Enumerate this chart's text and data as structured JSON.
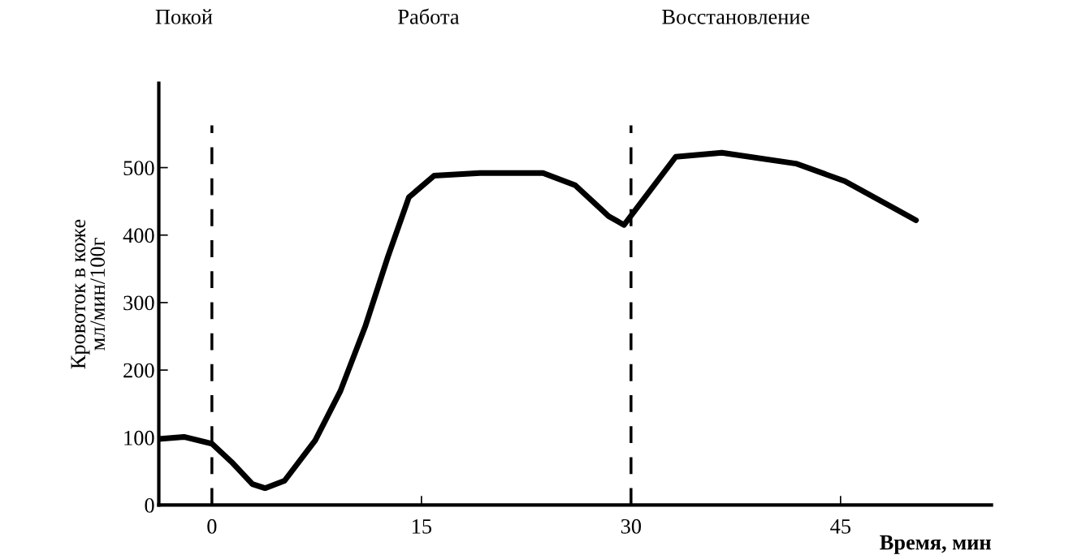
{
  "chart_data": {
    "type": "line",
    "xlabel": "Время, мин",
    "ylabel": "Кровоток в коже\nмл/мин/100г",
    "annotations": [
      "Покой",
      "Работа",
      "Восстановление"
    ],
    "x": [
      -3.8,
      -2.0,
      0,
      1.4,
      2.9,
      3.8,
      5.2,
      7.4,
      9.2,
      11.0,
      12.6,
      14.1,
      15.9,
      19.2,
      23.7,
      26.0,
      28.4,
      29.5,
      33.2,
      36.5,
      41.8,
      45.3,
      50.4
    ],
    "series": [
      {
        "color": "#000000",
        "values": [
          98,
          101,
          91,
          64,
          31,
          25,
          36,
          96,
          169,
          266,
          368,
          456,
          488,
          492,
          492,
          474,
          428,
          415,
          516,
          522,
          506,
          480,
          422
        ]
      }
    ],
    "xlim": [
      -3.8,
      55.8
    ],
    "ylim": [
      0,
      625
    ],
    "xticks": [
      0,
      15,
      30,
      45
    ],
    "yticks": [
      0,
      100,
      200,
      300,
      400,
      500
    ],
    "ref_lines": [
      {
        "axis": "x",
        "value": 0,
        "label": null,
        "line_style": "dashed",
        "color": "#000000"
      },
      {
        "axis": "x",
        "value": 30,
        "label": null,
        "line_style": "dashed",
        "color": "#000000"
      }
    ],
    "grid": false,
    "legend": false,
    "marker": "none",
    "line_style": "solid"
  }
}
